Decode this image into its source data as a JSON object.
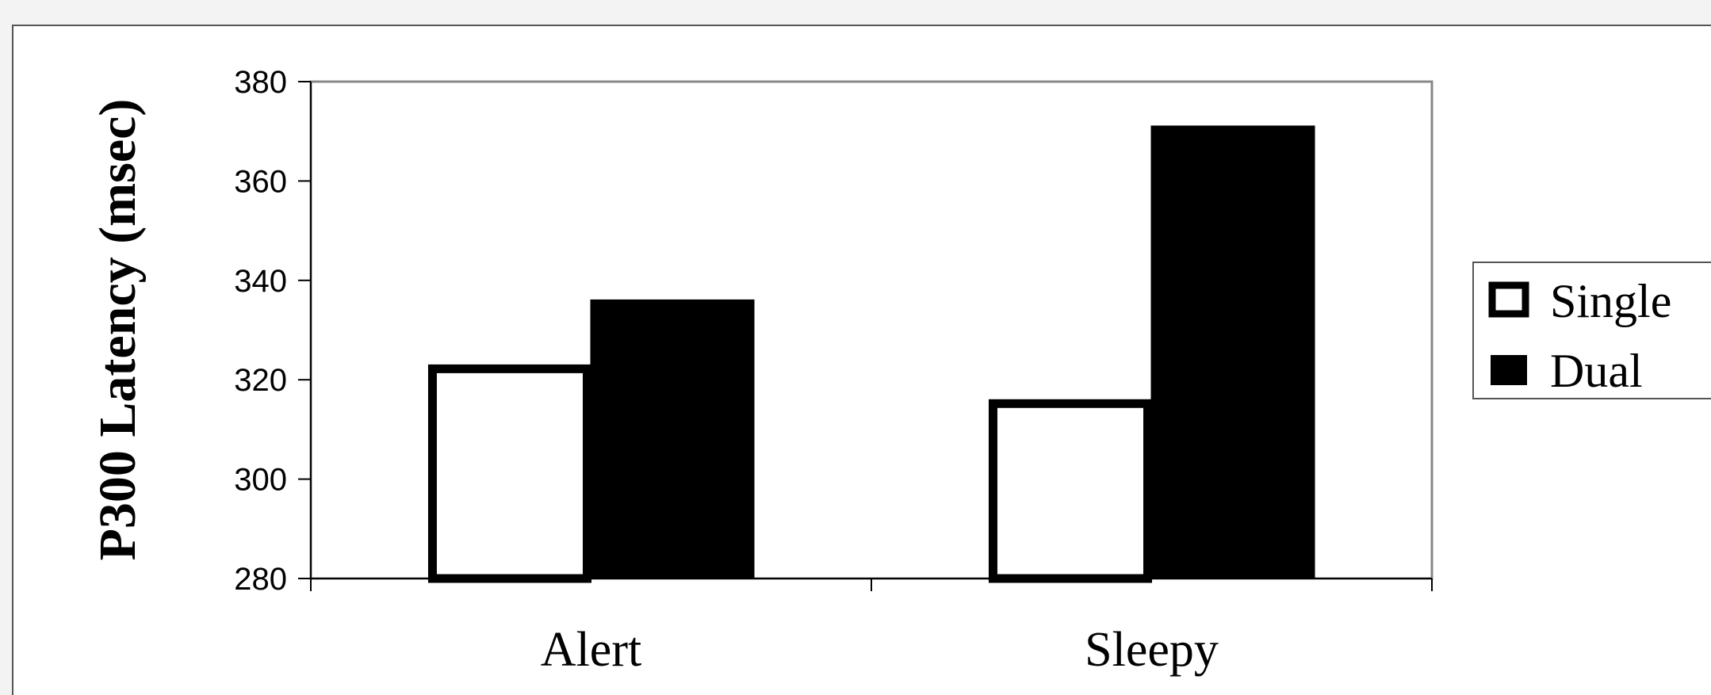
{
  "chart_data": {
    "type": "bar",
    "title": "",
    "xlabel": "",
    "ylabel": "P300 Latency (msec)",
    "categories": [
      "Alert",
      "Sleepy"
    ],
    "series": [
      {
        "name": "Single",
        "values": [
          323,
          316
        ],
        "color": "#ffffff"
      },
      {
        "name": "Dual",
        "values": [
          336,
          371
        ],
        "color": "#000000"
      }
    ],
    "ylim": [
      280,
      380
    ],
    "yticks": [
      "380",
      "360",
      "340",
      "320",
      "300",
      "280"
    ],
    "grid": false,
    "legend": "right"
  }
}
